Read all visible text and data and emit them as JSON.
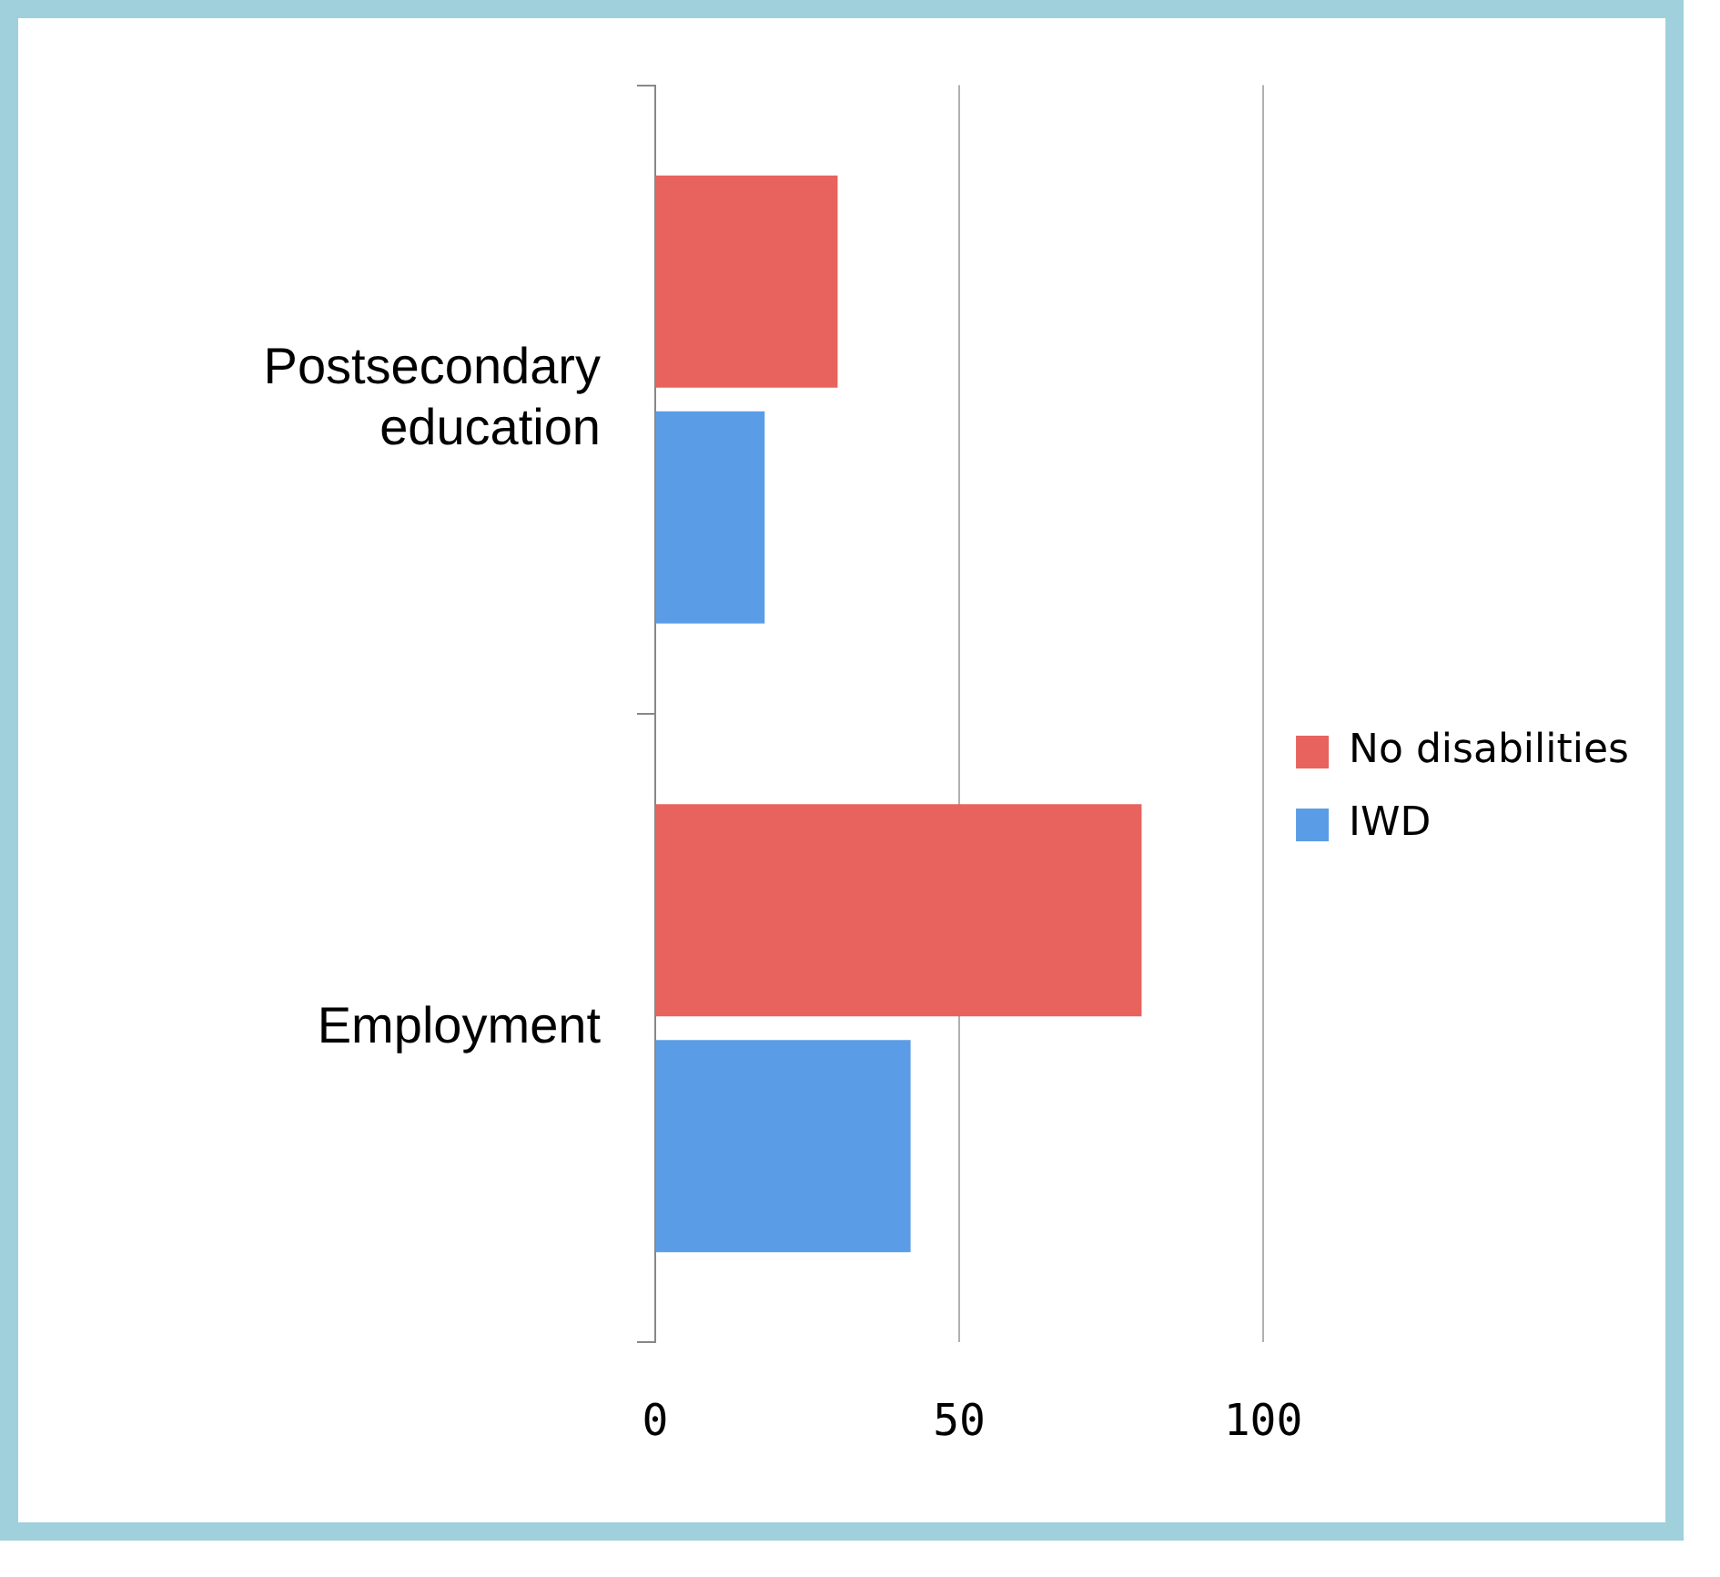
{
  "chart_data": {
    "type": "bar",
    "orientation": "horizontal",
    "categories": [
      "Postsecondary education",
      "Employment"
    ],
    "series": [
      {
        "name": "No disabilities",
        "color": "#e8625e",
        "values": [
          30,
          80
        ]
      },
      {
        "name": "IWD",
        "color": "#5b9ce6",
        "values": [
          18,
          42
        ]
      }
    ],
    "xlim": [
      0,
      100
    ],
    "xticks": [
      0,
      50,
      100
    ],
    "grid": "x",
    "legend": "right"
  }
}
